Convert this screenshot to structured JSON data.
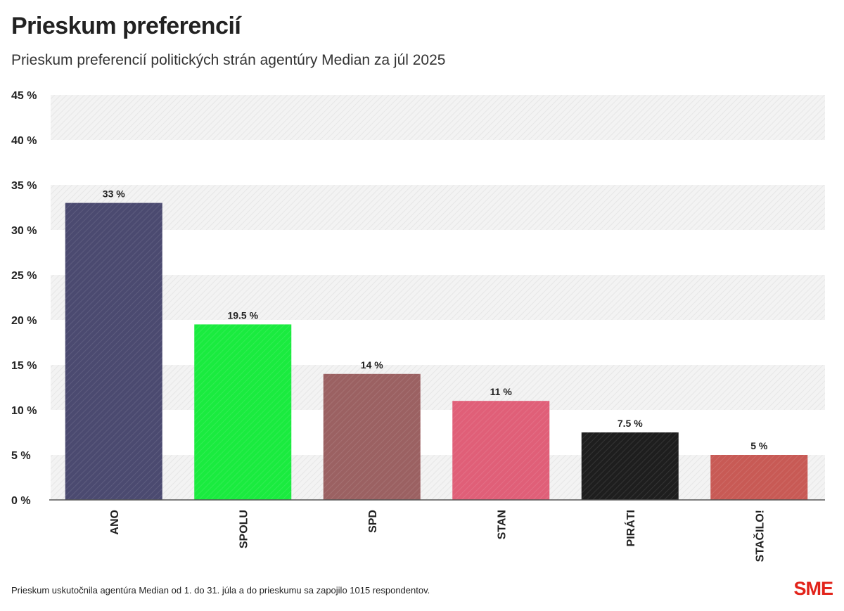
{
  "header": {
    "title": "Prieskum preferencií",
    "subtitle": "Prieskum preferencií politických strán agentúry Median za júl 2025"
  },
  "footer": {
    "note": "Prieskum uskutočnila agentúra Median od 1. do 31. júla a do prieskumu sa zapojilo 1015 respondentov.",
    "logo": "SME"
  },
  "chart_data": {
    "type": "bar",
    "title": "Prieskum preferencií",
    "subtitle": "Prieskum preferencií politických strán agentúry Median za júl 2025",
    "categories": [
      "ANO",
      "SPOLU",
      "SPD",
      "STAN",
      "PIRÁTI",
      "STAČILO!"
    ],
    "values": [
      33,
      19.5,
      14,
      11,
      7.5,
      5
    ],
    "data_labels": [
      "33 %",
      "19.5 %",
      "14 %",
      "11 %",
      "7.5 %",
      "5 %"
    ],
    "colors": [
      "#4b4a70",
      "#1aeb3f",
      "#9b6162",
      "#e05f78",
      "#1e1e1e",
      "#c85a55"
    ],
    "ylim": [
      0,
      45
    ],
    "yticks": [
      0,
      5,
      10,
      15,
      20,
      25,
      30,
      35,
      40,
      45
    ],
    "ytick_labels": [
      "0 %",
      "5 %",
      "10 %",
      "15 %",
      "20 %",
      "25 %",
      "30 %",
      "35 %",
      "40 %",
      "45 %"
    ],
    "xlabel": "",
    "ylabel": "",
    "grid": "alternating horizontal bands",
    "band_color": "#f2f2f2"
  }
}
